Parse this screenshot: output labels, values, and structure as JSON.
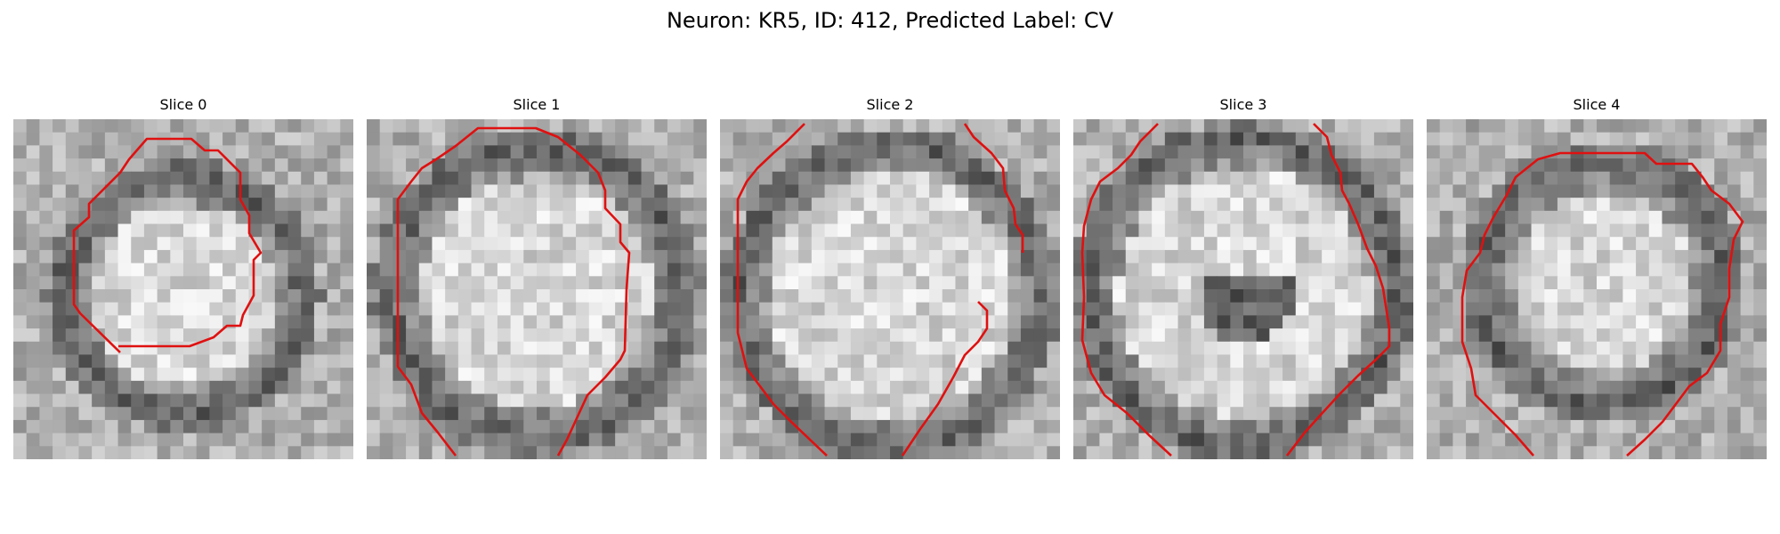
{
  "figure": {
    "title": "Neuron: KR5, ID: 412, Predicted Label: CV"
  },
  "slices": [
    {
      "title": "Slice 0",
      "contour_color": "#e01010"
    },
    {
      "title": "Slice 1",
      "contour_color": "#e01010"
    },
    {
      "title": "Slice 2",
      "contour_color": "#e01010"
    },
    {
      "title": "Slice 3",
      "contour_color": "#e01010"
    },
    {
      "title": "Slice 4",
      "contour_color": "#e01010"
    }
  ]
}
